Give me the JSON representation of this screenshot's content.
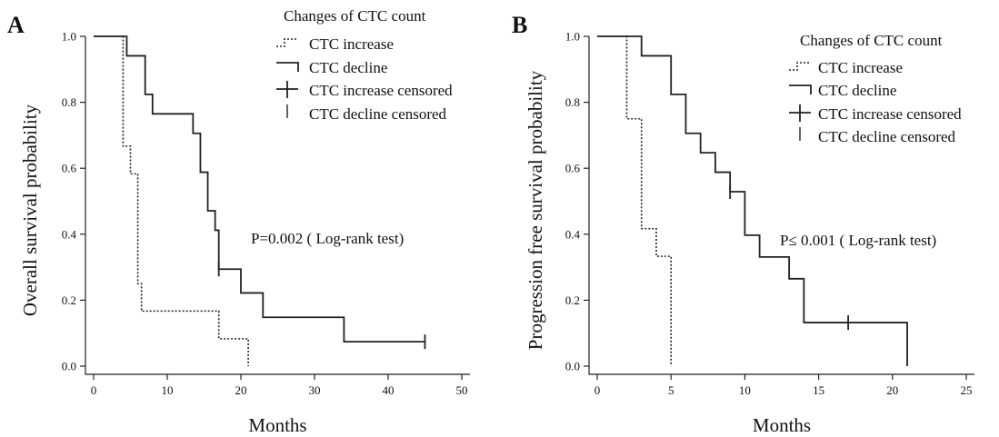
{
  "chart_data": [
    {
      "type": "line",
      "panel_label": "A",
      "xlabel": "Months",
      "ylabel": "Overall survival probability",
      "xlim": [
        0,
        50
      ],
      "ylim": [
        0,
        1
      ],
      "xticks": [
        "0",
        "10",
        "20",
        "30",
        "40",
        "50"
      ],
      "yticks": [
        "0.0",
        "0.2",
        "0.4",
        "0.6",
        "0.8",
        "1.0"
      ],
      "legend": {
        "title": "Changes of CTC count",
        "placement": "top-right",
        "entries": [
          "CTC increase",
          "CTC decline",
          "CTC increase censored",
          "CTC decline censored"
        ]
      },
      "annotation": "P=0.002 ( Log-rank test)",
      "series": [
        {
          "name": "CTC increase",
          "style": "dotted",
          "x": [
            0,
            4,
            5,
            6,
            6.5,
            7.5,
            17,
            21
          ],
          "y": [
            1.0,
            0.667,
            0.583,
            0.25,
            0.167,
            0.167,
            0.083,
            0.0
          ]
        },
        {
          "name": "CTC decline",
          "style": "solid",
          "x": [
            0,
            4.5,
            7,
            8,
            13.5,
            14.5,
            15.5,
            16.5,
            17,
            20,
            23,
            34,
            45
          ],
          "y": [
            1.0,
            0.941,
            0.824,
            0.765,
            0.706,
            0.588,
            0.471,
            0.412,
            0.294,
            0.222,
            0.148,
            0.074,
            0.074
          ],
          "censored": [
            {
              "x": 17,
              "y": 0.294
            },
            {
              "x": 45,
              "y": 0.074
            }
          ]
        }
      ]
    },
    {
      "type": "line",
      "panel_label": "B",
      "xlabel": "Months",
      "ylabel": "Progression free survival probability",
      "xlim": [
        0,
        25
      ],
      "ylim": [
        0,
        1
      ],
      "xticks": [
        "0",
        "5",
        "10",
        "15",
        "20",
        "25"
      ],
      "yticks": [
        "0.0",
        "0.2",
        "0.4",
        "0.6",
        "0.8",
        "1.0"
      ],
      "legend": {
        "title": "Changes of CTC count",
        "placement": "top-right",
        "entries": [
          "CTC increase",
          "CTC decline",
          "CTC increase censored",
          "CTC decline censored"
        ]
      },
      "annotation": "P≤ 0.001 ( Log-rank test)",
      "series": [
        {
          "name": "CTC increase",
          "style": "dotted",
          "x": [
            0,
            2,
            3,
            4,
            5
          ],
          "y": [
            1.0,
            0.75,
            0.417,
            0.333,
            0.0
          ]
        },
        {
          "name": "CTC decline",
          "style": "solid",
          "x": [
            0,
            3,
            5,
            6,
            7,
            8,
            9,
            10,
            11,
            13,
            14,
            21
          ],
          "y": [
            1.0,
            0.941,
            0.824,
            0.706,
            0.647,
            0.588,
            0.529,
            0.397,
            0.331,
            0.265,
            0.132,
            0.0
          ],
          "censored": [
            {
              "x": 9,
              "y": 0.529
            },
            {
              "x": 17,
              "y": 0.132
            }
          ]
        }
      ]
    }
  ]
}
